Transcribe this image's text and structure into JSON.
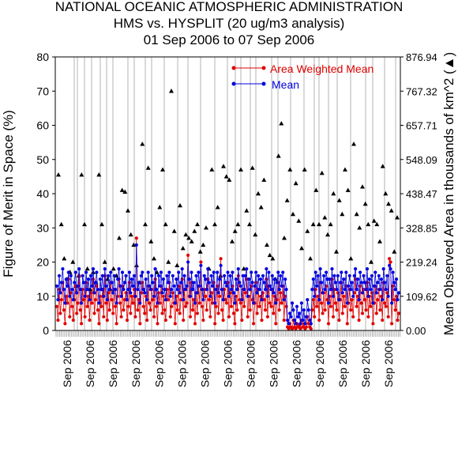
{
  "colors": {
    "area_weighted_mean": "#e00000",
    "mean": "#0000e0",
    "observed_area": "#000000",
    "gridline": "#a0a0a0"
  },
  "chart_data": {
    "type": "line",
    "title": "NATIONAL OCEANIC ATMOSPHERIC ADMINISTRATION",
    "subtitle": "HMS vs. HYSPLIT (20 ug/m3 analysis)",
    "date_range": "01 Sep 2006 to 07 Sep 2006",
    "ylabel": "Figure of Merit in Space (%)",
    "y2label": "Mean Observed Area in thousands of km^2 (▲)",
    "ylim": [
      0,
      80
    ],
    "y2lim": [
      0.0,
      876.94
    ],
    "yticks": [
      "0",
      "10",
      "20",
      "30",
      "40",
      "50",
      "60",
      "70",
      "80"
    ],
    "y2ticks": [
      "0.00",
      "109.62",
      "219.24",
      "328.85",
      "438.47",
      "548.09",
      "657.71",
      "767.32",
      "876.94"
    ],
    "xtick_labels": [
      "Sep 2006",
      "Sep 2006",
      "Sep 2006",
      "Sep 2006",
      "Sep 2006",
      "Sep 2006",
      "Sep 2006",
      "Sep 2006",
      "Sep 2006",
      "Sep 2006",
      "Sep 2006",
      "Sep 2006",
      "Sep 2006",
      "Sep 2006",
      "Sep 2006"
    ],
    "legend": [
      "Area Weighted Mean",
      "Mean"
    ],
    "legend_position": "top-right",
    "grid": "vertical lines",
    "note": "Dense time series of many short runs; values estimated from the plot.",
    "series": [
      {
        "name": "Area Weighted Mean",
        "values": [
          7,
          3,
          12,
          5,
          9,
          14,
          6,
          2,
          10,
          8,
          15,
          4,
          11,
          7,
          3,
          9,
          13,
          5,
          8,
          16,
          6,
          2,
          12,
          9,
          4,
          14,
          7,
          10,
          3,
          11,
          8,
          15,
          5,
          9,
          13,
          6,
          2,
          10,
          7,
          12,
          4,
          16,
          8,
          3,
          11,
          6,
          14,
          9,
          5,
          12,
          7,
          2,
          10,
          15,
          8,
          4,
          13,
          6,
          9,
          11,
          3,
          7,
          14,
          5,
          10,
          8,
          12,
          4,
          27,
          6,
          9,
          2,
          11,
          14,
          7,
          5,
          10,
          3,
          13,
          8,
          6,
          12,
          9,
          4,
          15,
          7,
          2,
          11,
          8,
          13,
          5,
          10,
          6,
          3,
          12,
          9,
          14,
          4,
          7,
          11,
          8,
          2,
          10,
          6,
          13,
          5,
          9,
          15,
          3,
          12,
          7,
          8,
          22,
          10,
          4,
          14,
          6,
          9,
          2,
          11,
          5,
          13,
          8,
          20,
          7,
          3,
          12,
          10,
          6,
          15,
          9,
          4,
          11,
          8,
          14,
          2,
          7,
          13,
          5,
          10,
          21,
          6,
          3,
          12,
          9,
          8,
          14,
          4,
          11,
          7,
          13,
          5,
          2,
          10,
          6,
          16,
          9,
          8,
          3,
          12,
          7,
          11,
          15,
          4,
          10,
          6,
          13,
          9,
          2,
          8,
          14,
          5,
          12,
          7,
          10,
          3,
          11,
          9,
          6,
          15,
          4,
          13,
          8,
          7,
          12,
          5,
          10,
          2,
          9,
          14,
          6,
          11,
          8,
          13,
          3,
          10,
          7,
          1,
          0.5,
          2,
          1,
          0.5,
          3,
          1,
          0.5,
          2,
          1,
          1.5,
          0.5,
          3,
          1,
          2,
          0.5,
          1,
          4,
          2,
          1,
          0.5,
          6,
          9,
          4,
          12,
          7,
          10,
          3,
          14,
          8,
          5,
          11,
          6,
          13,
          9,
          2,
          10,
          7,
          15,
          4,
          12,
          8,
          6,
          11,
          3,
          9,
          14,
          5,
          10,
          7,
          13,
          2,
          8,
          12,
          6,
          9,
          4,
          11,
          15,
          7,
          10,
          3,
          13,
          8,
          5,
          12,
          9,
          6,
          14,
          4,
          10,
          7,
          11,
          2,
          8,
          13,
          5,
          9,
          12,
          6,
          10,
          3,
          14,
          8,
          7,
          11,
          4,
          21,
          20,
          2,
          13,
          9,
          6,
          10,
          3,
          5
        ]
      },
      {
        "name": "Mean",
        "values": [
          13,
          9,
          16,
          11,
          14,
          18,
          12,
          8,
          15,
          13,
          17,
          10,
          16,
          12,
          9,
          14,
          17,
          11,
          13,
          18,
          12,
          8,
          16,
          14,
          10,
          17,
          12,
          15,
          9,
          16,
          13,
          18,
          11,
          14,
          17,
          12,
          8,
          15,
          12,
          16,
          10,
          18,
          13,
          9,
          16,
          12,
          17,
          14,
          11,
          16,
          12,
          8,
          15,
          18,
          13,
          10,
          17,
          12,
          14,
          16,
          9,
          12,
          17,
          11,
          15,
          13,
          16,
          10,
          25,
          12,
          14,
          8,
          16,
          17,
          12,
          11,
          15,
          9,
          17,
          13,
          12,
          16,
          14,
          10,
          18,
          12,
          8,
          16,
          13,
          17,
          11,
          15,
          12,
          9,
          16,
          14,
          17,
          10,
          12,
          16,
          13,
          8,
          15,
          12,
          17,
          11,
          14,
          18,
          9,
          16,
          12,
          13,
          20,
          15,
          10,
          17,
          12,
          14,
          8,
          16,
          11,
          17,
          13,
          19,
          12,
          9,
          16,
          15,
          12,
          18,
          14,
          10,
          16,
          13,
          17,
          8,
          12,
          17,
          11,
          15,
          19,
          12,
          9,
          16,
          14,
          13,
          17,
          10,
          16,
          12,
          17,
          11,
          8,
          15,
          12,
          18,
          14,
          13,
          9,
          16,
          12,
          16,
          18,
          10,
          15,
          12,
          17,
          14,
          8,
          13,
          17,
          11,
          16,
          12,
          15,
          9,
          16,
          14,
          12,
          18,
          10,
          17,
          13,
          12,
          16,
          11,
          15,
          8,
          14,
          17,
          12,
          16,
          13,
          17,
          9,
          15,
          12,
          3,
          2,
          5,
          4,
          8,
          6,
          3,
          2,
          7,
          4,
          5,
          2,
          8,
          3,
          6,
          2,
          4,
          9,
          6,
          3,
          2,
          12,
          15,
          10,
          17,
          13,
          16,
          9,
          18,
          14,
          11,
          16,
          12,
          17,
          15,
          8,
          15,
          12,
          18,
          10,
          16,
          14,
          12,
          16,
          9,
          14,
          17,
          11,
          15,
          12,
          17,
          8,
          13,
          16,
          12,
          14,
          10,
          16,
          18,
          12,
          15,
          9,
          17,
          14,
          11,
          16,
          14,
          12,
          18,
          10,
          15,
          12,
          16,
          8,
          13,
          17,
          11,
          14,
          16,
          12,
          15,
          9,
          18,
          14,
          12,
          16,
          10,
          19,
          18,
          8,
          17,
          14,
          12,
          15,
          9,
          11
        ]
      },
      {
        "name": "Mean Observed Area",
        "values": [
          45.5,
          31,
          21,
          15,
          17,
          20,
          13,
          16,
          45.5,
          31,
          18,
          12,
          17,
          14,
          45.5,
          31,
          20,
          15,
          12,
          18,
          16,
          27,
          41,
          40.5,
          35,
          28,
          25,
          19,
          14,
          54.5,
          31,
          47.5,
          26,
          21,
          17,
          36,
          47,
          31,
          20,
          70,
          29,
          19,
          36.5,
          24,
          28,
          27,
          26,
          29,
          31,
          23,
          25,
          30,
          18,
          47,
          31,
          36,
          16,
          48,
          45,
          44,
          26,
          29,
          31,
          47,
          18,
          35,
          31,
          47.5,
          28,
          40,
          36,
          44,
          25,
          22,
          21,
          15,
          51,
          60.5,
          27,
          38,
          47,
          34,
          43,
          32,
          24,
          47,
          29,
          21,
          31,
          41,
          31,
          46,
          33,
          28,
          31,
          40,
          23,
          38,
          34,
          47,
          41,
          21,
          54.5,
          34,
          30,
          42,
          37,
          31,
          20,
          32,
          31,
          26,
          48,
          40,
          37,
          35,
          23,
          33
        ]
      }
    ]
  }
}
